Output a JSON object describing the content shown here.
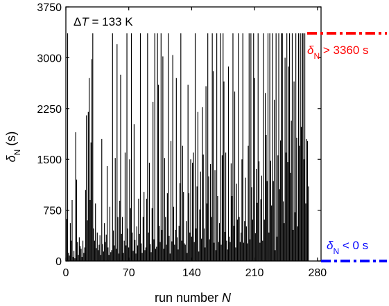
{
  "chart_data": {
    "type": "bar",
    "x_label_text": "run number ",
    "x_label_var": "N",
    "y_label_var": "δ",
    "y_label_sub": "N",
    "y_label_unit": " (s)",
    "annotation": {
      "prefix": "Δ",
      "var": "T",
      "suffix": " = 133 K"
    },
    "xlim": [
      0,
      284
    ],
    "ylim": [
      0,
      3750
    ],
    "x_ticks": [
      0,
      70,
      140,
      210,
      280
    ],
    "y_ticks": [
      0,
      750,
      1500,
      2250,
      3000,
      3750
    ],
    "threshold_high": {
      "value": 3360,
      "color": "#ff0000",
      "label_var": "δ",
      "label_sub": "N",
      "label_rest": " > 3360 s"
    },
    "threshold_low": {
      "value": 0,
      "color": "#0000ff",
      "label_var": "δ",
      "label_sub": "N",
      "label_rest": " < 0 s"
    },
    "values": [
      620,
      3360,
      120,
      80,
      560,
      300,
      900,
      60,
      150,
      40,
      1900,
      1200,
      280,
      90,
      350,
      220,
      180,
      60,
      300,
      120,
      200,
      1050,
      2150,
      600,
      2200,
      2700,
      900,
      1750,
      2980,
      3360,
      480,
      300,
      850,
      190,
      420,
      160,
      240,
      380,
      90,
      1800,
      250,
      140,
      560,
      280,
      390,
      1400,
      200,
      90,
      800,
      130,
      160,
      3360,
      450,
      230,
      1520,
      180,
      3200,
      650,
      110,
      890,
      2750,
      400,
      650,
      120,
      300,
      1600,
      230,
      3360,
      480,
      200,
      1500,
      780,
      3360,
      420,
      150,
      2020,
      310,
      110,
      510,
      230,
      920,
      400,
      3360,
      260,
      120,
      650,
      1020,
      160,
      200,
      920,
      3360,
      420,
      1450,
      250,
      130,
      780,
      2350,
      320,
      3360,
      180,
      210,
      3360,
      2600,
      520,
      280,
      3360,
      460,
      3020,
      180,
      1520,
      650,
      240,
      1000,
      3360,
      370,
      110,
      1770,
      290,
      3040,
      800,
      240,
      460,
      2700,
      350,
      170,
      520,
      1150,
      3360,
      300,
      1700,
      1020,
      260,
      240,
      590,
      120,
      2600,
      1000,
      420,
      1500,
      360,
      1450,
      1600,
      280,
      3360,
      480,
      1100,
      2200,
      140,
      760,
      1320,
      330,
      2270,
      1570,
      480,
      200,
      2580,
      850,
      3360,
      1250,
      320,
      1430,
      650,
      3360,
      2800,
      270,
      1340,
      160,
      3360,
      960,
      280,
      560,
      3360,
      240,
      1560,
      3360,
      2650,
      430,
      1600,
      300,
      170,
      2870,
      360,
      280,
      1440,
      960,
      3360,
      520,
      2500,
      200,
      1140,
      610,
      3360,
      650,
      280,
      420,
      1500,
      3360,
      270,
      590,
      1230,
      510,
      260,
      1700,
      3360,
      320,
      3360,
      1090,
      610,
      3360,
      2700,
      410,
      1360,
      860,
      3360,
      1470,
      270,
      910,
      1260,
      300,
      3360,
      610,
      2480,
      1860,
      1180,
      3360,
      420,
      3360,
      1480,
      820,
      3360,
      1180,
      2380,
      160,
      3360,
      360,
      1560,
      3360,
      1060,
      1780,
      3360,
      3360,
      880,
      560,
      3000,
      1600,
      3360,
      1460,
      2870,
      3360,
      1300,
      2070,
      3360,
      460,
      2650,
      720,
      3360,
      1820,
      510,
      3360,
      1700,
      3360,
      1980,
      3360,
      3360,
      1500,
      3360,
      850,
      1800,
      1770,
      1100
    ]
  }
}
